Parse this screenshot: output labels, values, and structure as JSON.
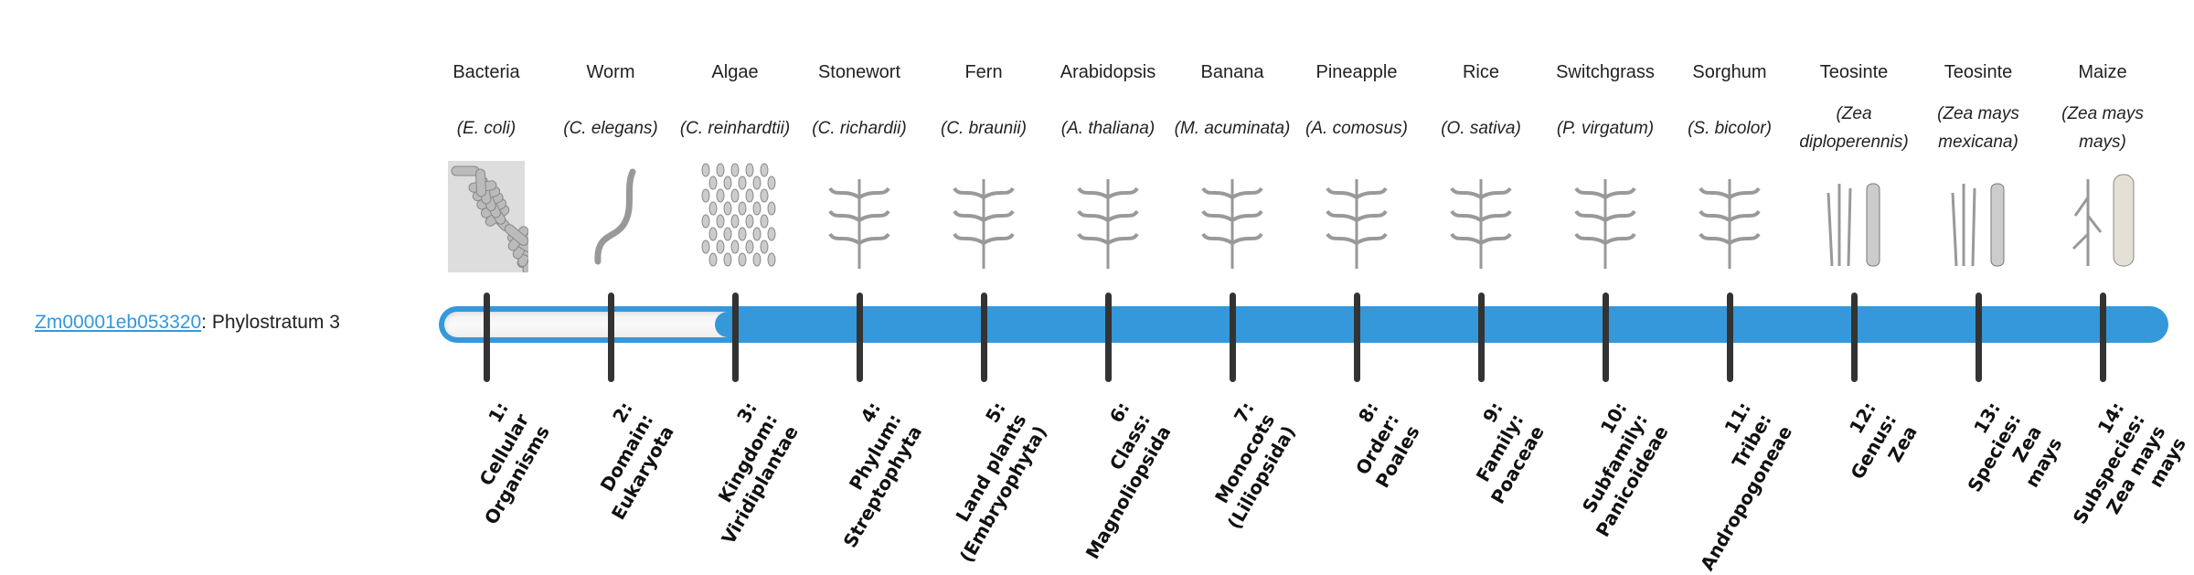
{
  "gene": {
    "id": "Zm00001eb053320",
    "suffix": ": Phylostratum 3",
    "phylostratum": 3,
    "total_strata": 14
  },
  "colors": {
    "bar": "#3498db",
    "tick": "#333333",
    "link": "#3498db"
  },
  "organisms": [
    {
      "common": "Bacteria",
      "scientific": "(E. coli)",
      "icon": "bacteria-icon"
    },
    {
      "common": "Worm",
      "scientific": "(C. elegans)",
      "icon": "worm-icon"
    },
    {
      "common": "Algae",
      "scientific": "(C. reinhardtii)",
      "icon": "algae-icon"
    },
    {
      "common": "Stonewort",
      "scientific": "(C. richardii)",
      "icon": "stonewort-icon"
    },
    {
      "common": "Fern",
      "scientific": "(C. braunii)",
      "icon": "fern-icon"
    },
    {
      "common": "Arabidopsis",
      "scientific": "(A. thaliana)",
      "icon": "arabidopsis-icon"
    },
    {
      "common": "Banana",
      "scientific": "(M. acuminata)",
      "icon": "banana-icon"
    },
    {
      "common": "Pineapple",
      "scientific": "(A. comosus)",
      "icon": "pineapple-icon"
    },
    {
      "common": "Rice",
      "scientific": "(O. sativa)",
      "icon": "rice-icon"
    },
    {
      "common": "Switchgrass",
      "scientific": "(P. virgatum)",
      "icon": "switchgrass-icon"
    },
    {
      "common": "Sorghum",
      "scientific": "(S. bicolor)",
      "icon": "sorghum-icon"
    },
    {
      "common": "Teosinte",
      "scientific": "(Zea diploperennis)",
      "icon": "teosinte-icon"
    },
    {
      "common": "Teosinte",
      "scientific": "(Zea mays mexicana)",
      "icon": "teosinte-icon"
    },
    {
      "common": "Maize",
      "scientific": "(Zea mays mays)",
      "icon": "maize-icon"
    }
  ],
  "strata": [
    "1:\nCellular\nOrganisms",
    "2:\nDomain:\nEukaryota",
    "3:\nKingdom:\nViridiplantae",
    "4:\nPhylum:\nStreptophyta",
    "5:\nLand plants\n(Embryophyta)",
    "6:\nClass:\nMagnoliopsida",
    "7:\nMonocots\n(Liliopsida)",
    "8:\nOrder:\nPoales",
    "9:\nFamily:\nPoaceae",
    "10:\nSubfamily:\nPanicoideae",
    "11:\nTribe:\nAndropogoneae",
    "12:\nGenus:\nZea",
    "13:\nSpecies:\nZea\nmays",
    "14:\nSubspecies:\nZea mays\nmays"
  ]
}
